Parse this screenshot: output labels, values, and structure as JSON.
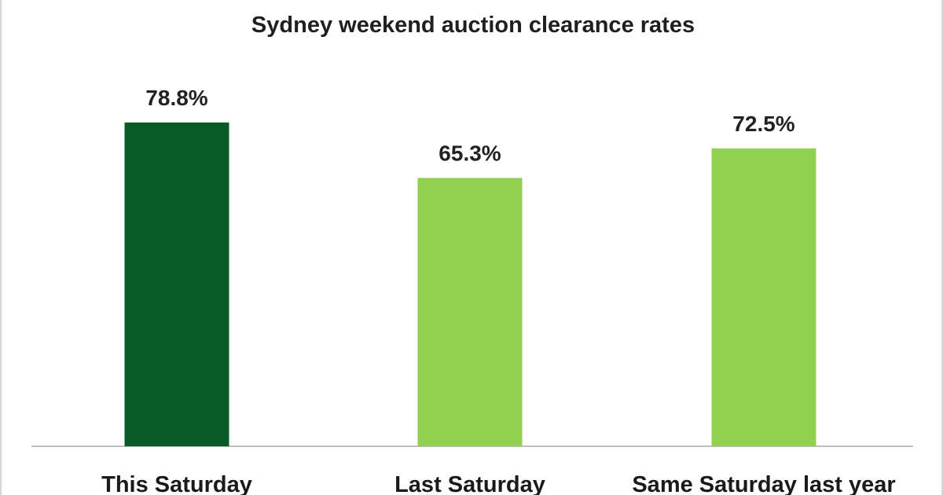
{
  "chart_data": {
    "type": "bar",
    "title": "Sydney weekend auction clearance rates",
    "categories": [
      "This Saturday",
      "Last Saturday",
      "Same Saturday last year"
    ],
    "values": [
      78.8,
      65.3,
      72.5
    ],
    "value_labels": [
      "78.8%",
      "65.3%",
      "72.5%"
    ],
    "colors": [
      "#0a5a25",
      "#92d050",
      "#92d050"
    ],
    "ylim": [
      0,
      100
    ],
    "grid": false,
    "legend": "none",
    "xlabel": "",
    "ylabel": ""
  }
}
